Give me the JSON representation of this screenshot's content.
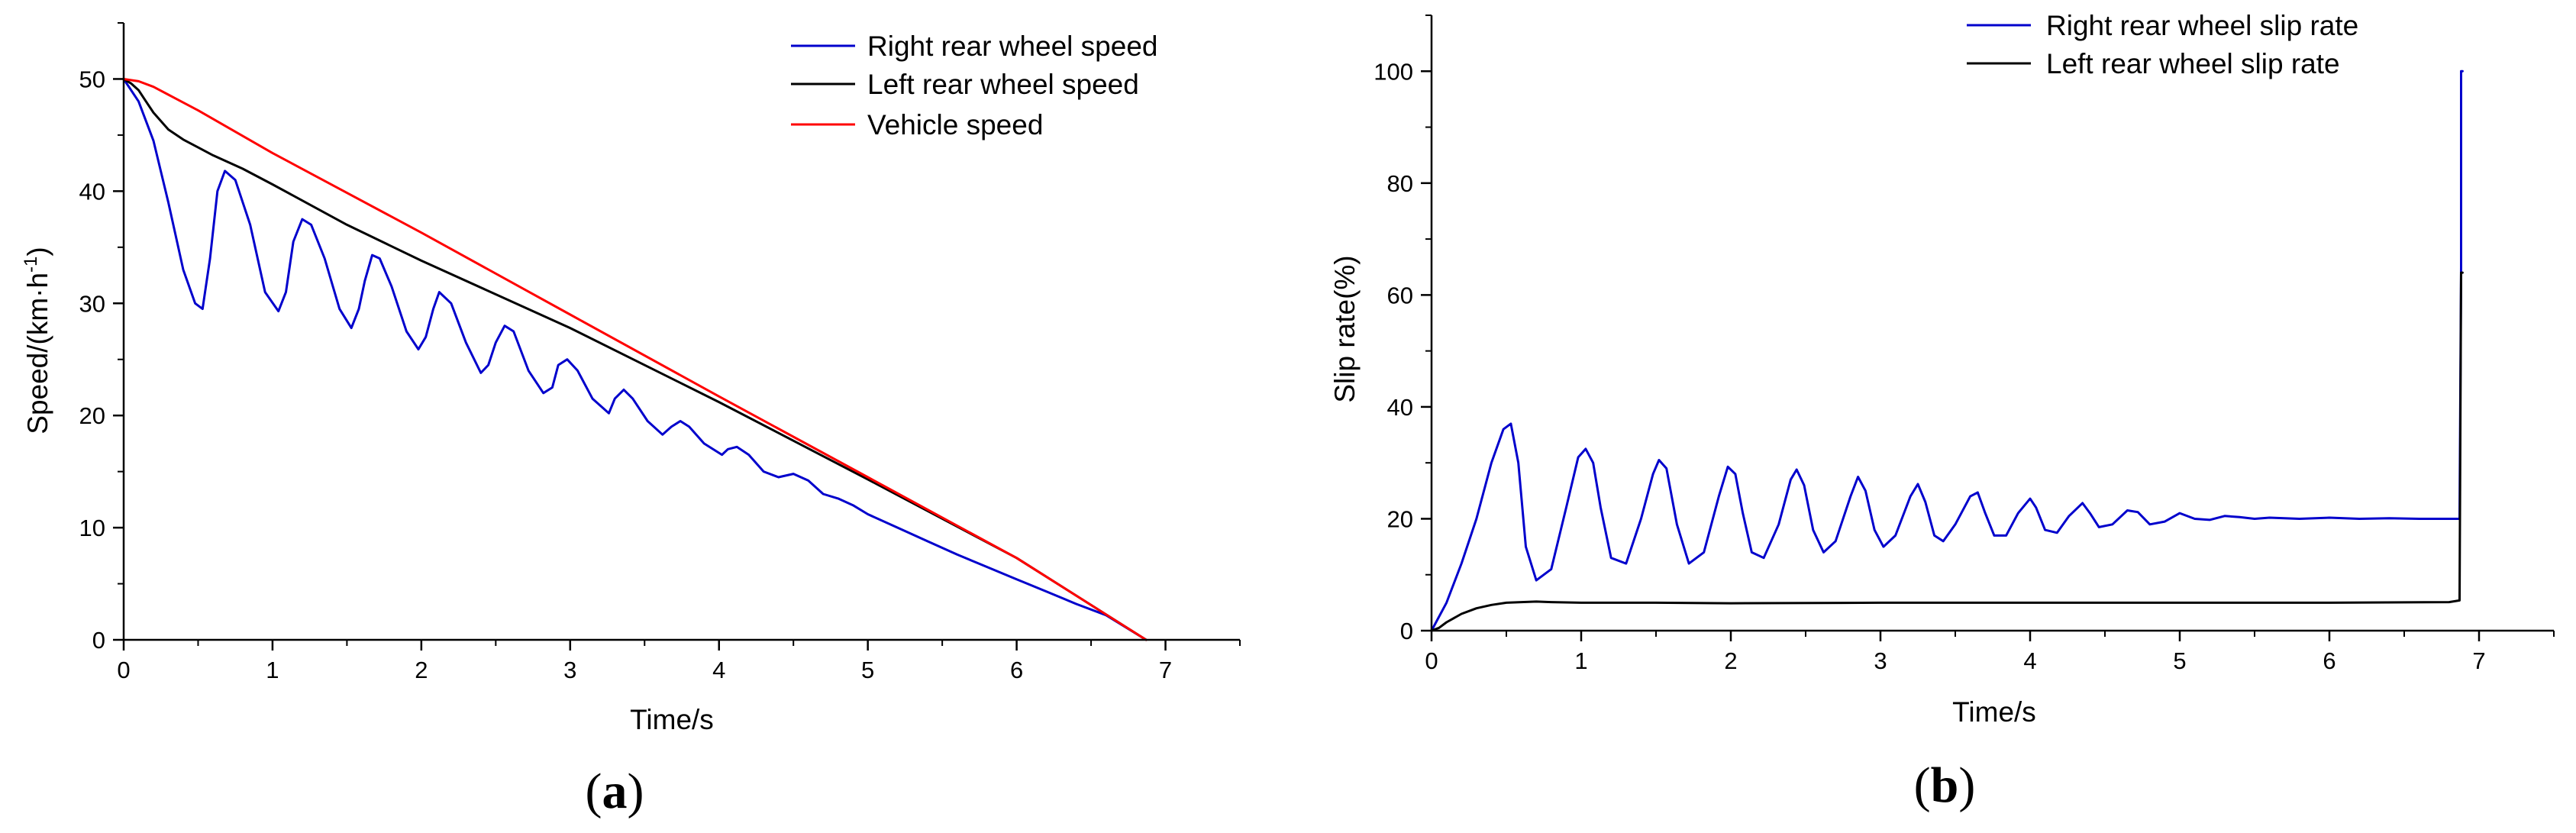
{
  "chart_data": [
    {
      "id": "a",
      "type": "line",
      "panel_label": "a",
      "xlabel": "Time/s",
      "ylabel": "Speed/(km·h",
      "ylabel_sup": "-1",
      "ylabel_tail": ")",
      "xlim": [
        0,
        7.5
      ],
      "ylim": [
        0,
        55
      ],
      "xticks": [
        0,
        1,
        2,
        3,
        4,
        5,
        6,
        7
      ],
      "yticks": [
        0,
        10,
        20,
        30,
        40,
        50
      ],
      "legend_position": "top-right",
      "series": [
        {
          "name": "Right rear wheel speed",
          "color": "#0000cc",
          "x": [
            0,
            0.1,
            0.2,
            0.3,
            0.4,
            0.48,
            0.53,
            0.58,
            0.63,
            0.68,
            0.75,
            0.85,
            0.95,
            1.04,
            1.09,
            1.14,
            1.2,
            1.26,
            1.35,
            1.45,
            1.53,
            1.58,
            1.62,
            1.67,
            1.72,
            1.8,
            1.9,
            1.98,
            2.03,
            2.08,
            2.12,
            2.2,
            2.3,
            2.4,
            2.45,
            2.5,
            2.56,
            2.62,
            2.72,
            2.82,
            2.88,
            2.92,
            2.98,
            3.05,
            3.15,
            3.26,
            3.3,
            3.36,
            3.42,
            3.52,
            3.62,
            3.68,
            3.74,
            3.8,
            3.9,
            4.02,
            4.06,
            4.12,
            4.2,
            4.3,
            4.4,
            4.5,
            4.6,
            4.7,
            4.8,
            4.9,
            5.0,
            5.2,
            5.4,
            5.6,
            5.8,
            6.0,
            6.2,
            6.4,
            6.6,
            6.87
          ],
          "y": [
            50,
            48,
            44.5,
            39,
            33,
            30,
            29.5,
            34,
            40,
            41.8,
            41,
            37,
            31,
            29.3,
            31,
            35.5,
            37.5,
            37,
            34,
            29.5,
            27.8,
            29.5,
            32,
            34.3,
            34,
            31.5,
            27.5,
            25.9,
            27,
            29.5,
            31,
            30,
            26.5,
            23.8,
            24.5,
            26.5,
            28,
            27.5,
            24,
            22,
            22.5,
            24.5,
            25,
            24,
            21.5,
            20.2,
            21.5,
            22.3,
            21.5,
            19.5,
            18.3,
            19,
            19.5,
            19,
            17.5,
            16.5,
            17,
            17.2,
            16.5,
            15,
            14.5,
            14.8,
            14.2,
            13,
            12.6,
            12,
            11.2,
            10,
            8.8,
            7.6,
            6.5,
            5.4,
            4.3,
            3.2,
            2.2,
            0
          ]
        },
        {
          "name": "Left rear wheel speed",
          "color": "#000000",
          "x": [
            0,
            0.05,
            0.1,
            0.15,
            0.2,
            0.3,
            0.4,
            0.5,
            0.6,
            0.8,
            1.0,
            1.5,
            2.0,
            3.0,
            4.0,
            5.0,
            6.0,
            6.87
          ],
          "y": [
            50,
            49.6,
            49,
            48,
            47,
            45.5,
            44.6,
            43.9,
            43.2,
            42,
            40.6,
            37,
            33.8,
            27.8,
            21.2,
            14.3,
            7.3,
            0
          ]
        },
        {
          "name": "Vehicle speed",
          "color": "#ff0000",
          "x": [
            0,
            0.1,
            0.2,
            0.3,
            0.5,
            1.0,
            2.0,
            3.0,
            4.0,
            5.0,
            6.0,
            6.87
          ],
          "y": [
            50,
            49.8,
            49.3,
            48.6,
            47.2,
            43.4,
            36.3,
            29,
            21.7,
            14.5,
            7.3,
            0
          ]
        }
      ]
    },
    {
      "id": "b",
      "type": "line",
      "panel_label": "b",
      "xlabel": "Time/s",
      "ylabel": "Slip rate(%)",
      "xlim": [
        0,
        7.5
      ],
      "ylim": [
        0,
        110
      ],
      "xticks": [
        0,
        1,
        2,
        3,
        4,
        5,
        6,
        7
      ],
      "yticks": [
        0,
        20,
        40,
        60,
        80,
        100
      ],
      "legend_position": "top-right",
      "series": [
        {
          "name": "Right rear wheel slip rate",
          "color": "#0000cc",
          "x": [
            0,
            0.1,
            0.2,
            0.3,
            0.4,
            0.48,
            0.53,
            0.58,
            0.63,
            0.7,
            0.8,
            0.9,
            0.98,
            1.03,
            1.08,
            1.13,
            1.2,
            1.3,
            1.4,
            1.48,
            1.52,
            1.57,
            1.64,
            1.72,
            1.82,
            1.92,
            1.98,
            2.03,
            2.08,
            2.14,
            2.22,
            2.32,
            2.4,
            2.44,
            2.49,
            2.55,
            2.62,
            2.7,
            2.8,
            2.85,
            2.9,
            2.96,
            3.02,
            3.1,
            3.2,
            3.25,
            3.3,
            3.36,
            3.42,
            3.5,
            3.6,
            3.65,
            3.7,
            3.76,
            3.84,
            3.92,
            4.0,
            4.04,
            4.1,
            4.18,
            4.26,
            4.35,
            4.4,
            4.46,
            4.55,
            4.65,
            4.72,
            4.8,
            4.9,
            5.0,
            5.1,
            5.2,
            5.3,
            5.4,
            5.5,
            5.6,
            5.8,
            6.0,
            6.2,
            6.4,
            6.6,
            6.87,
            6.88,
            6.88,
            6.89
          ],
          "y": [
            0,
            5,
            12,
            20,
            30,
            36,
            37,
            30,
            15,
            9,
            11,
            22,
            31,
            32.5,
            30,
            22,
            13,
            12,
            20,
            28,
            30.5,
            29,
            19,
            12,
            14,
            24,
            29.3,
            28,
            21,
            14,
            13,
            19,
            27,
            28.8,
            26,
            18,
            14,
            16,
            24,
            27.5,
            25,
            18,
            15,
            17,
            24,
            26.2,
            23,
            17,
            16,
            19,
            24,
            24.7,
            21,
            17,
            17,
            21,
            23.6,
            22,
            18,
            17.5,
            20.5,
            22.8,
            21,
            18.5,
            19,
            21.5,
            21.2,
            19,
            19.5,
            21,
            20,
            19.8,
            20.5,
            20.3,
            20,
            20.2,
            20,
            20.2,
            20,
            20.1,
            20,
            20,
            65,
            100,
            100
          ]
        },
        {
          "name": "Left rear wheel slip rate",
          "color": "#000000",
          "x": [
            0,
            0.05,
            0.1,
            0.2,
            0.3,
            0.4,
            0.5,
            0.6,
            0.7,
            0.8,
            1.0,
            1.5,
            2.0,
            3.0,
            4.0,
            5.0,
            6.0,
            6.8,
            6.87,
            6.88,
            6.89
          ],
          "y": [
            0,
            0.5,
            1.5,
            3,
            4,
            4.6,
            5,
            5.1,
            5.2,
            5.1,
            5,
            5,
            4.9,
            5,
            5,
            5,
            5,
            5.1,
            5.4,
            64,
            64
          ]
        }
      ]
    }
  ]
}
